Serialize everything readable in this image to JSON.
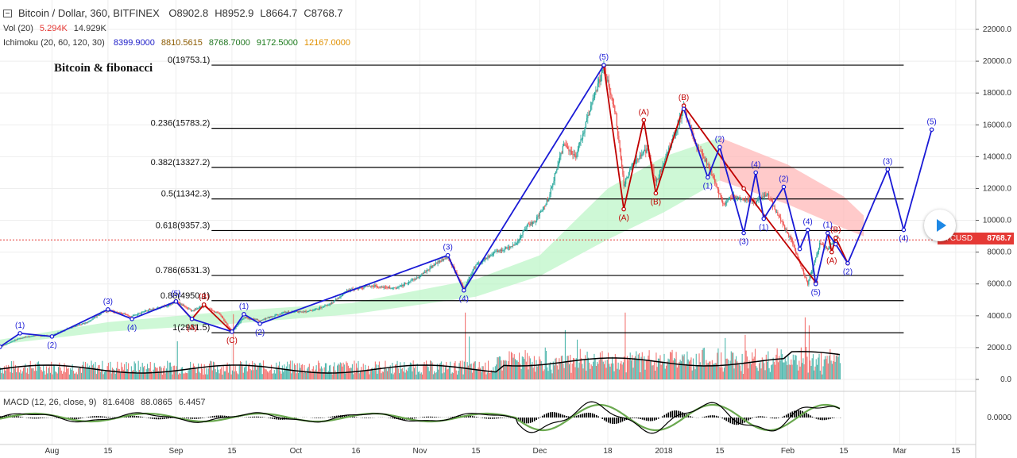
{
  "header": {
    "symbol": "Bitcoin / Dollar, 360, BITFINEX",
    "open": "O8902.8",
    "high": "H8952.9",
    "low": "L8664.7",
    "close": "C8768.7"
  },
  "vol_legend": {
    "label": "Vol (20)",
    "value1": "5.294K",
    "value2": "14.929K"
  },
  "ichimoku_legend": {
    "label": "Ichimoku (20, 60, 120, 30)",
    "values": [
      "8399.9000",
      "8810.5615",
      "8768.7000",
      "9172.5000",
      "12167.0000"
    ],
    "colors": [
      "#1e1ec8",
      "#8b5a00",
      "#227722",
      "#1a7a1a",
      "#e09000"
    ]
  },
  "macd_legend": {
    "label": "MACD (12, 26, close, 9)",
    "values": [
      "81.6408",
      "88.0865",
      "6.4457"
    ]
  },
  "annotation": "Bitcoin & fibonacci",
  "price_tag": {
    "pair": "BTCUSD",
    "value": "8768.7"
  },
  "colors": {
    "up": "#26a69a",
    "down": "#ef5350",
    "wave_blue": "#1a1ad6",
    "wave_red": "#c00000",
    "fib_line": "#000000",
    "cloud_red": "#ffb3b3",
    "cloud_green": "#b9f5c4",
    "macd_green": "#6aa84f"
  },
  "chart_data": {
    "type": "line",
    "title": "Bitcoin / Dollar, 360, BITFINEX",
    "x_axis": {
      "tick_labels": [
        "Aug",
        "15",
        "Sep",
        "15",
        "Oct",
        "16",
        "Nov",
        "15",
        "Dec",
        "18",
        "2018",
        "15",
        "Feb",
        "15",
        "Mar",
        "15"
      ],
      "tick_dates": [
        "2017-08-01",
        "2017-08-15",
        "2017-09-01",
        "2017-09-15",
        "2017-10-01",
        "2017-10-16",
        "2017-11-01",
        "2017-11-15",
        "2017-12-01",
        "2017-12-18",
        "2018-01-01",
        "2018-01-15",
        "2018-02-01",
        "2018-02-15",
        "2018-03-01",
        "2018-03-15"
      ],
      "range": [
        "2017-07-19",
        "2018-03-20"
      ]
    },
    "y_axis": {
      "tick_labels": [
        "0.0",
        "2000.0",
        "4000.0",
        "6000.0",
        "8000.0",
        "10000.0",
        "12000.0",
        "14000.0",
        "16000.0",
        "18000.0",
        "20000.0",
        "22000.0"
      ],
      "range": [
        1800,
        22500
      ],
      "position": "right"
    },
    "fibonacci_levels": [
      {
        "label": "0(19753.1)",
        "value": 19753.1
      },
      {
        "label": "0.236(15783.2)",
        "value": 15783.2
      },
      {
        "label": "0.382(13327.2)",
        "value": 13327.2
      },
      {
        "label": "0.5(11342.3)",
        "value": 11342.3
      },
      {
        "label": "0.618(9357.3)",
        "value": 9357.3
      },
      {
        "label": "0.786(6531.3)",
        "value": 6531.3
      },
      {
        "label": "0.88(4950.1)",
        "value": 4950.1
      },
      {
        "label": "1(2931.5)",
        "value": 2931.5
      }
    ],
    "fib_range": [
      "2017-08-27",
      "2018-03-02"
    ],
    "last_price": 8768.7,
    "price_path": [
      [
        "2017-07-19",
        2050
      ],
      [
        "2017-07-24",
        2600
      ],
      [
        "2017-07-28",
        2750
      ],
      [
        "2017-08-01",
        2750
      ],
      [
        "2017-08-05",
        3200
      ],
      [
        "2017-08-10",
        3600
      ],
      [
        "2017-08-14",
        4300
      ],
      [
        "2017-08-17",
        4250
      ],
      [
        "2017-08-21",
        3950
      ],
      [
        "2017-08-25",
        4350
      ],
      [
        "2017-08-30",
        4650
      ],
      [
        "2017-09-01",
        4900
      ],
      [
        "2017-09-05",
        4300
      ],
      [
        "2017-09-08",
        4600
      ],
      [
        "2017-09-12",
        4100
      ],
      [
        "2017-09-15",
        3000
      ],
      [
        "2017-09-18",
        3900
      ],
      [
        "2017-09-22",
        3700
      ],
      [
        "2017-09-28",
        4200
      ],
      [
        "2017-10-05",
        4300
      ],
      [
        "2017-10-10",
        4800
      ],
      [
        "2017-10-14",
        5600
      ],
      [
        "2017-10-20",
        5900
      ],
      [
        "2017-10-26",
        5700
      ],
      [
        "2017-11-01",
        6500
      ],
      [
        "2017-11-05",
        7300
      ],
      [
        "2017-11-08",
        7700
      ],
      [
        "2017-11-12",
        5700
      ],
      [
        "2017-11-15",
        7200
      ],
      [
        "2017-11-20",
        8000
      ],
      [
        "2017-11-25",
        8500
      ],
      [
        "2017-11-28",
        9700
      ],
      [
        "2017-11-30",
        10000
      ],
      [
        "2017-12-03",
        11300
      ],
      [
        "2017-12-07",
        14800
      ],
      [
        "2017-12-10",
        14000
      ],
      [
        "2017-12-13",
        16500
      ],
      [
        "2017-12-17",
        19700
      ],
      [
        "2017-12-20",
        16500
      ],
      [
        "2017-12-22",
        12200
      ],
      [
        "2017-12-24",
        13500
      ],
      [
        "2017-12-28",
        14500
      ],
      [
        "2017-12-30",
        12300
      ],
      [
        "2018-01-03",
        15000
      ],
      [
        "2018-01-06",
        17000
      ],
      [
        "2018-01-09",
        14800
      ],
      [
        "2018-01-12",
        13500
      ],
      [
        "2018-01-16",
        11000
      ],
      [
        "2018-01-18",
        11500
      ],
      [
        "2018-01-21",
        11300
      ],
      [
        "2018-01-24",
        11200
      ],
      [
        "2018-01-27",
        11600
      ],
      [
        "2018-01-30",
        10100
      ],
      [
        "2018-02-02",
        8700
      ],
      [
        "2018-02-06",
        6000
      ],
      [
        "2018-02-09",
        8500
      ],
      [
        "2018-02-11",
        8200
      ],
      [
        "2018-02-13",
        8900
      ],
      [
        "2018-02-14",
        8768.7
      ]
    ],
    "cloud": [
      [
        "2017-07-19",
        2500,
        2200
      ],
      [
        "2017-08-15",
        3600,
        3000
      ],
      [
        "2017-09-15",
        4300,
        3500
      ],
      [
        "2017-10-15",
        4800,
        4100
      ],
      [
        "2017-11-15",
        6300,
        5200
      ],
      [
        "2017-12-01",
        7800,
        6500
      ],
      [
        "2017-12-18",
        12000,
        8800
      ],
      [
        "2018-01-01",
        14000,
        10500
      ],
      [
        "2018-01-15",
        15200,
        12500
      ],
      [
        "2018-02-01",
        13500,
        11000
      ],
      [
        "2018-02-15",
        11500,
        9500
      ],
      [
        "2018-02-20",
        10300,
        9000
      ]
    ],
    "waves_blue": [
      {
        "points": [
          [
            "2017-07-19",
            2050
          ],
          [
            "2017-07-24",
            2900
          ],
          [
            "2017-08-01",
            2700
          ],
          [
            "2017-08-15",
            4400
          ],
          [
            "2017-08-21",
            3800
          ],
          [
            "2017-09-01",
            4900
          ],
          [
            "2017-09-05",
            3800
          ],
          [
            "2017-09-15",
            3000
          ],
          [
            "2017-09-18",
            4100
          ],
          [
            "2017-09-22",
            3500
          ],
          [
            "2017-11-08",
            7800
          ],
          [
            "2017-11-12",
            5600
          ],
          [
            "2017-12-17",
            19753
          ]
        ],
        "labels": [
          [
            "2017-07-24",
            2900,
            "(1)",
            "above"
          ],
          [
            "2017-08-01",
            2700,
            "(2)",
            "below"
          ],
          [
            "2017-08-15",
            4400,
            "(3)",
            "above"
          ],
          [
            "2017-08-21",
            3800,
            "(4)",
            "below"
          ],
          [
            "2017-09-01",
            4900,
            "(5)",
            "above"
          ],
          [
            "2017-09-18",
            4100,
            "(1)",
            "above"
          ],
          [
            "2017-09-22",
            3500,
            "(2)",
            "below"
          ],
          [
            "2017-11-08",
            7800,
            "(3)",
            "above"
          ],
          [
            "2017-11-12",
            5600,
            "(4)",
            "below"
          ],
          [
            "2017-12-17",
            19753,
            "(5)",
            "above"
          ]
        ]
      },
      {
        "points": [
          [
            "2018-01-06",
            17000
          ],
          [
            "2018-01-12",
            12700
          ],
          [
            "2018-01-15",
            14600
          ],
          [
            "2018-01-21",
            9200
          ],
          [
            "2018-01-24",
            13000
          ],
          [
            "2018-01-26",
            10100
          ],
          [
            "2018-01-31",
            12100
          ],
          [
            "2018-02-04",
            8200
          ],
          [
            "2018-02-06",
            9400
          ],
          [
            "2018-02-08",
            6000
          ],
          [
            "2018-02-11",
            9200
          ],
          [
            "2018-02-13",
            8500
          ],
          [
            "2018-02-16",
            7300
          ],
          [
            "2018-02-26",
            13200
          ],
          [
            "2018-03-02",
            9400
          ],
          [
            "2018-03-09",
            15700
          ]
        ],
        "labels": [
          [
            "2018-01-12",
            12700,
            "(1)",
            "below"
          ],
          [
            "2018-01-15",
            14600,
            "(2)",
            "above"
          ],
          [
            "2018-01-21",
            9200,
            "(3)",
            "below"
          ],
          [
            "2018-01-24",
            13000,
            "(4)",
            "above"
          ],
          [
            "2018-01-26",
            10100,
            "(1)",
            "below"
          ],
          [
            "2018-01-31",
            12100,
            "(2)",
            "above"
          ],
          [
            "2018-02-06",
            9400,
            "(4)",
            "above"
          ],
          [
            "2018-02-08",
            6000,
            "(5)",
            "below"
          ],
          [
            "2018-02-11",
            9200,
            "(1)",
            "above"
          ],
          [
            "2018-02-16",
            7300,
            "(2)",
            "below"
          ],
          [
            "2018-02-26",
            13200,
            "(3)",
            "above"
          ],
          [
            "2018-03-02",
            9400,
            "(4)",
            "below"
          ],
          [
            "2018-03-09",
            15700,
            "(5)",
            "above"
          ]
        ]
      }
    ],
    "waves_red": [
      {
        "points": [
          [
            "2017-09-01",
            4900
          ],
          [
            "2017-09-05",
            3800
          ],
          [
            "2017-09-08",
            4700
          ],
          [
            "2017-09-15",
            3000
          ]
        ],
        "labels": [
          [
            "2017-09-05",
            3800,
            "(A)",
            "below"
          ],
          [
            "2017-09-08",
            4700,
            "(B)",
            "above"
          ],
          [
            "2017-09-15",
            3000,
            "(C)",
            "below"
          ]
        ]
      },
      {
        "points": [
          [
            "2017-12-17",
            19700
          ],
          [
            "2017-12-22",
            10700
          ],
          [
            "2017-12-27",
            16300
          ],
          [
            "2017-12-30",
            11700
          ],
          [
            "2018-01-06",
            17200
          ],
          [
            "2018-01-21",
            12000
          ],
          [
            "2018-02-08",
            6100
          ]
        ],
        "labels": [
          [
            "2017-12-22",
            10700,
            "(A)",
            "below"
          ],
          [
            "2017-12-27",
            16300,
            "(A)",
            "above"
          ],
          [
            "2017-12-30",
            11700,
            "(B)",
            "below"
          ],
          [
            "2018-01-06",
            17200,
            "(B)",
            "above"
          ]
        ]
      },
      {
        "points": [
          [
            "2018-02-11",
            9200
          ],
          [
            "2018-02-12",
            8000
          ],
          [
            "2018-02-13",
            8900
          ],
          [
            "2018-02-16",
            7300
          ]
        ],
        "labels": [
          [
            "2018-02-12",
            8000,
            "(A)",
            "below"
          ],
          [
            "2018-02-13",
            8900,
            "(B)",
            "above"
          ]
        ]
      }
    ],
    "volume_spikes": [
      [
        "2017-09-01",
        2400
      ],
      [
        "2017-09-15",
        4100
      ],
      [
        "2017-11-12",
        4200
      ],
      [
        "2017-11-13",
        2700
      ],
      [
        "2017-12-07",
        3100
      ],
      [
        "2017-12-10",
        2500
      ],
      [
        "2017-12-22",
        4200
      ],
      [
        "2018-01-16",
        2600
      ],
      [
        "2018-01-21",
        2800
      ],
      [
        "2018-02-05",
        3900
      ],
      [
        "2018-02-06",
        3400
      ]
    ],
    "macd": {
      "zero_label": "0.0000"
    }
  }
}
